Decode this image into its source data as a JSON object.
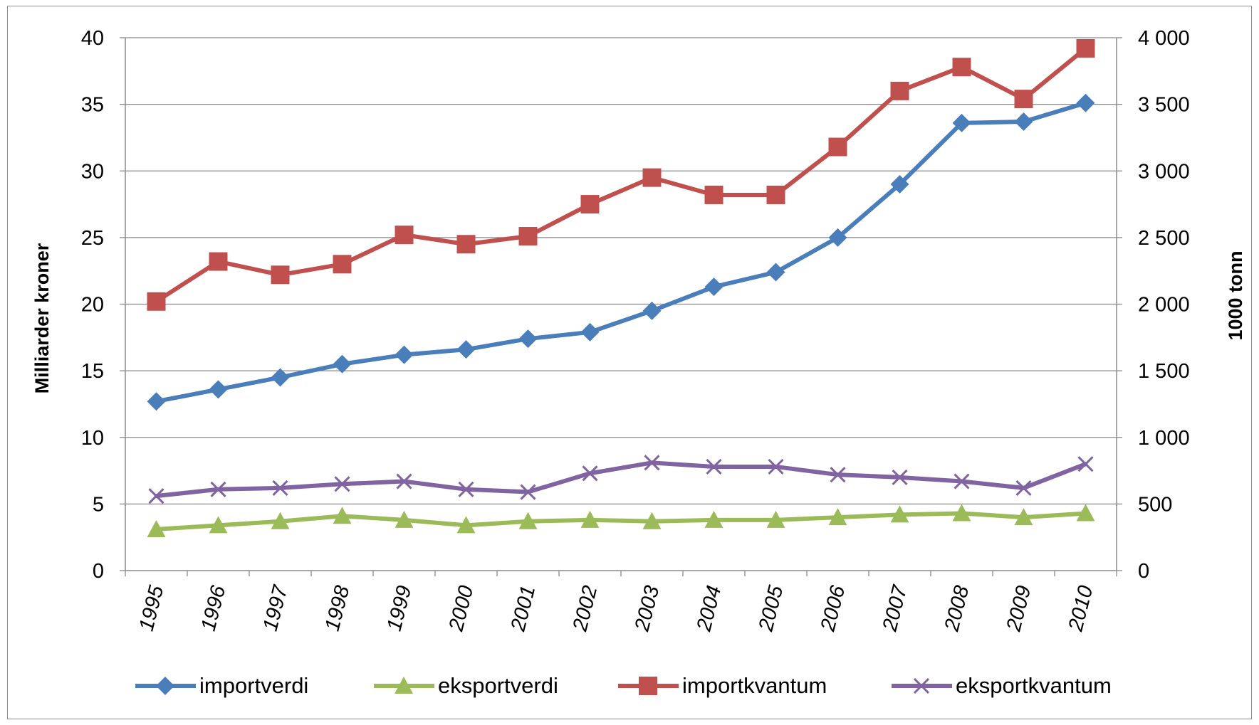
{
  "chart_data": {
    "type": "line",
    "categories": [
      "1995",
      "1996",
      "1997",
      "1998",
      "1999",
      "2000",
      "2001",
      "2002",
      "2003",
      "2004",
      "2005",
      "2006",
      "2007",
      "2008",
      "2009",
      "2010"
    ],
    "ylabel_left": "Milliarder kroner",
    "ylabel_right": "1000 tonn",
    "ylim_left": [
      0,
      40
    ],
    "ylim_right": [
      0,
      4000
    ],
    "yticks_left": [
      "0",
      "5",
      "10",
      "15",
      "20",
      "25",
      "30",
      "35",
      "40"
    ],
    "yticks_right": [
      "0",
      "500",
      "1 000",
      "1 500",
      "2 000",
      "2 500",
      "3 000",
      "3 500",
      "4 000"
    ],
    "grid": true,
    "legend_position": "bottom",
    "series": [
      {
        "name": "importverdi",
        "axis": "left",
        "color": "#4a7ebb",
        "marker": "diamond",
        "values": [
          12.7,
          13.6,
          14.5,
          15.5,
          16.2,
          16.6,
          17.4,
          17.9,
          19.5,
          21.3,
          22.4,
          25.0,
          29.0,
          33.6,
          33.7,
          35.1
        ]
      },
      {
        "name": "eksportverdi",
        "axis": "left",
        "color": "#9bbb59",
        "marker": "triangle",
        "values": [
          3.1,
          3.4,
          3.7,
          4.1,
          3.8,
          3.4,
          3.7,
          3.8,
          3.7,
          3.8,
          3.8,
          4.0,
          4.2,
          4.3,
          4.0,
          4.3
        ]
      },
      {
        "name": "importkvantum",
        "axis": "right",
        "color": "#c0504d",
        "marker": "square",
        "values": [
          2020,
          2320,
          2220,
          2300,
          2520,
          2450,
          2510,
          2750,
          2950,
          2820,
          2820,
          3180,
          3600,
          3780,
          3540,
          3920
        ]
      },
      {
        "name": "eksportkvantum",
        "axis": "right",
        "color": "#8064a2",
        "marker": "x",
        "values": [
          560,
          610,
          620,
          650,
          670,
          610,
          590,
          730,
          810,
          780,
          780,
          720,
          700,
          670,
          620,
          800
        ]
      }
    ]
  }
}
